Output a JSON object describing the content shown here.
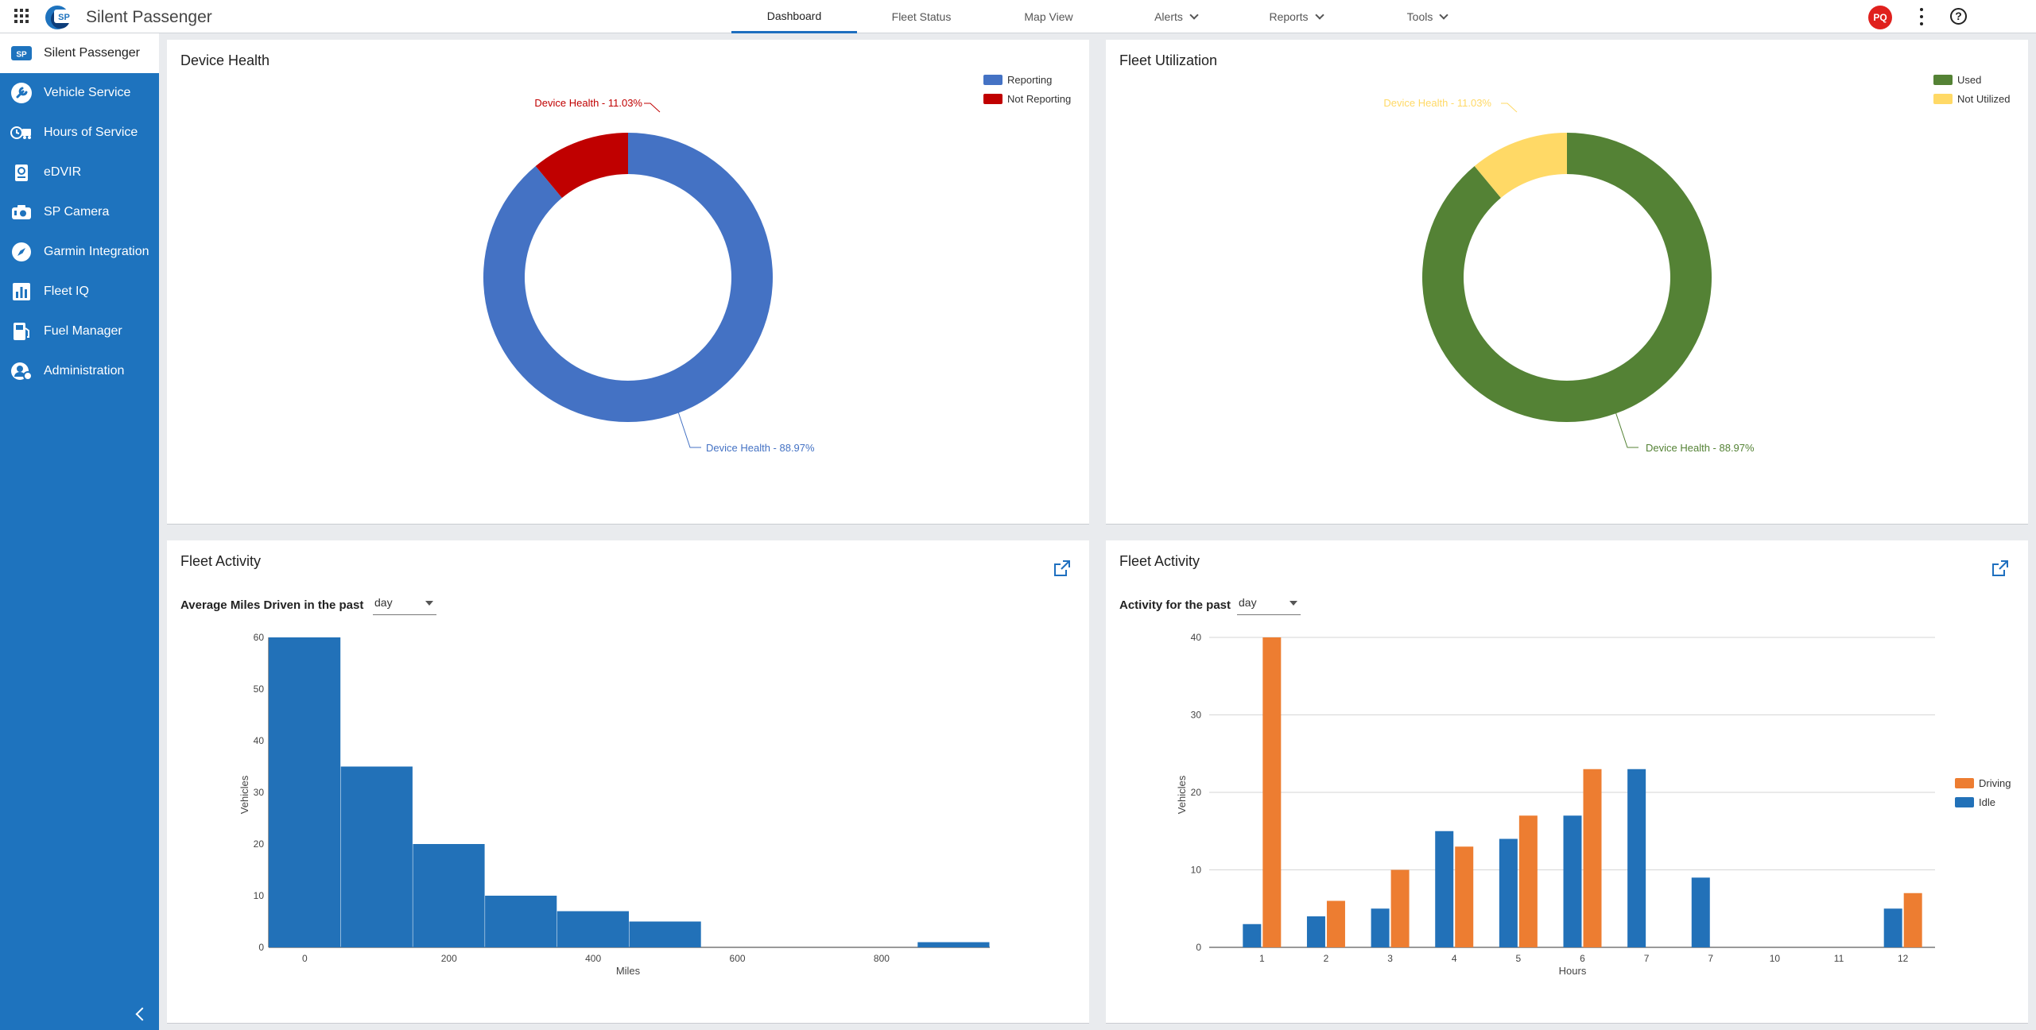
{
  "header": {
    "app_title": "Silent Passenger",
    "logo_text": "SP",
    "nav": [
      "Dashboard",
      "Fleet Status",
      "Map View",
      "Alerts",
      "Reports",
      "Tools"
    ],
    "user_initials": "PQ",
    "help_label": "?"
  },
  "sidebar": {
    "items": [
      {
        "label": "Silent Passenger",
        "icon": "sp-logo-icon"
      },
      {
        "label": "Vehicle Service",
        "icon": "wrench-icon"
      },
      {
        "label": "Hours of Service",
        "icon": "clock-truck-icon"
      },
      {
        "label": "eDVIR",
        "icon": "clipboard-icon"
      },
      {
        "label": "SP Camera",
        "icon": "camera-icon"
      },
      {
        "label": "Garmin Integration",
        "icon": "compass-icon"
      },
      {
        "label": "Fleet IQ",
        "icon": "bar-chart-icon"
      },
      {
        "label": "Fuel Manager",
        "icon": "fuel-pump-icon"
      },
      {
        "label": "Administration",
        "icon": "user-gear-icon"
      }
    ]
  },
  "device_health": {
    "title": "Device Health",
    "legend": [
      "Reporting",
      "Not Reporting"
    ],
    "label_major": "Device Health - 88.97%",
    "label_minor": "Device Health - 11.03%"
  },
  "fleet_utilization": {
    "title": "Fleet Utilization",
    "legend": [
      "Used",
      "Not Utilized"
    ],
    "label_major": "Device Health - 88.97%",
    "label_minor": "Device Health - 11.03%"
  },
  "activity_left": {
    "title": "Fleet Activity",
    "subtitle": "Average Miles Driven in the past",
    "select_value": "day"
  },
  "activity_right": {
    "title": "Fleet Activity",
    "subtitle": "Activity for the past",
    "select_value": "day"
  },
  "colors": {
    "blue": "#4472c4",
    "red": "#c00000",
    "green": "#548235",
    "yellow": "#ffd966",
    "bar_blue": "#2271b8",
    "bar_orange": "#ed7d31"
  },
  "chart_data": [
    {
      "type": "pie",
      "title": "Device Health",
      "labels": [
        "Reporting",
        "Not Reporting"
      ],
      "values": [
        88.97,
        11.03
      ],
      "legend": "top-right"
    },
    {
      "type": "pie",
      "title": "Fleet Utilization",
      "labels": [
        "Used",
        "Not Utilized"
      ],
      "values": [
        88.97,
        11.03
      ],
      "legend": "top-right"
    },
    {
      "type": "bar",
      "title": "Fleet Activity",
      "xlabel": "Miles",
      "ylabel": "Vehicles",
      "bins": [
        [
          0,
          100
        ],
        [
          100,
          200
        ],
        [
          200,
          300
        ],
        [
          300,
          400
        ],
        [
          400,
          500
        ],
        [
          500,
          600
        ],
        [
          600,
          700
        ],
        [
          700,
          800
        ],
        [
          800,
          900
        ],
        [
          900,
          1000
        ]
      ],
      "values": [
        60,
        35,
        20,
        10,
        7,
        5,
        0,
        0,
        0,
        1
      ],
      "xticks": [
        0,
        200,
        400,
        600,
        800
      ],
      "yticks": [
        0,
        10,
        20,
        30,
        40,
        50,
        60
      ],
      "ylim": [
        0,
        60
      ],
      "grid": false
    },
    {
      "type": "bar",
      "title": "Fleet Activity",
      "xlabel": "Hours",
      "ylabel": "Vehicles",
      "categories": [
        "1",
        "2",
        "3",
        "4",
        "5",
        "6",
        "7",
        "7",
        "10",
        "11",
        "12"
      ],
      "series": [
        {
          "name": "Idle",
          "values": [
            3,
            4,
            5,
            15,
            14,
            17,
            23,
            9,
            0,
            0,
            5
          ]
        },
        {
          "name": "Driving",
          "values": [
            40,
            6,
            10,
            13,
            17,
            23,
            0,
            0,
            0,
            0,
            7
          ]
        }
      ],
      "yticks": [
        0,
        10,
        20,
        30,
        40
      ],
      "ylim": [
        0,
        40
      ],
      "grid": true,
      "legend": "right"
    }
  ]
}
